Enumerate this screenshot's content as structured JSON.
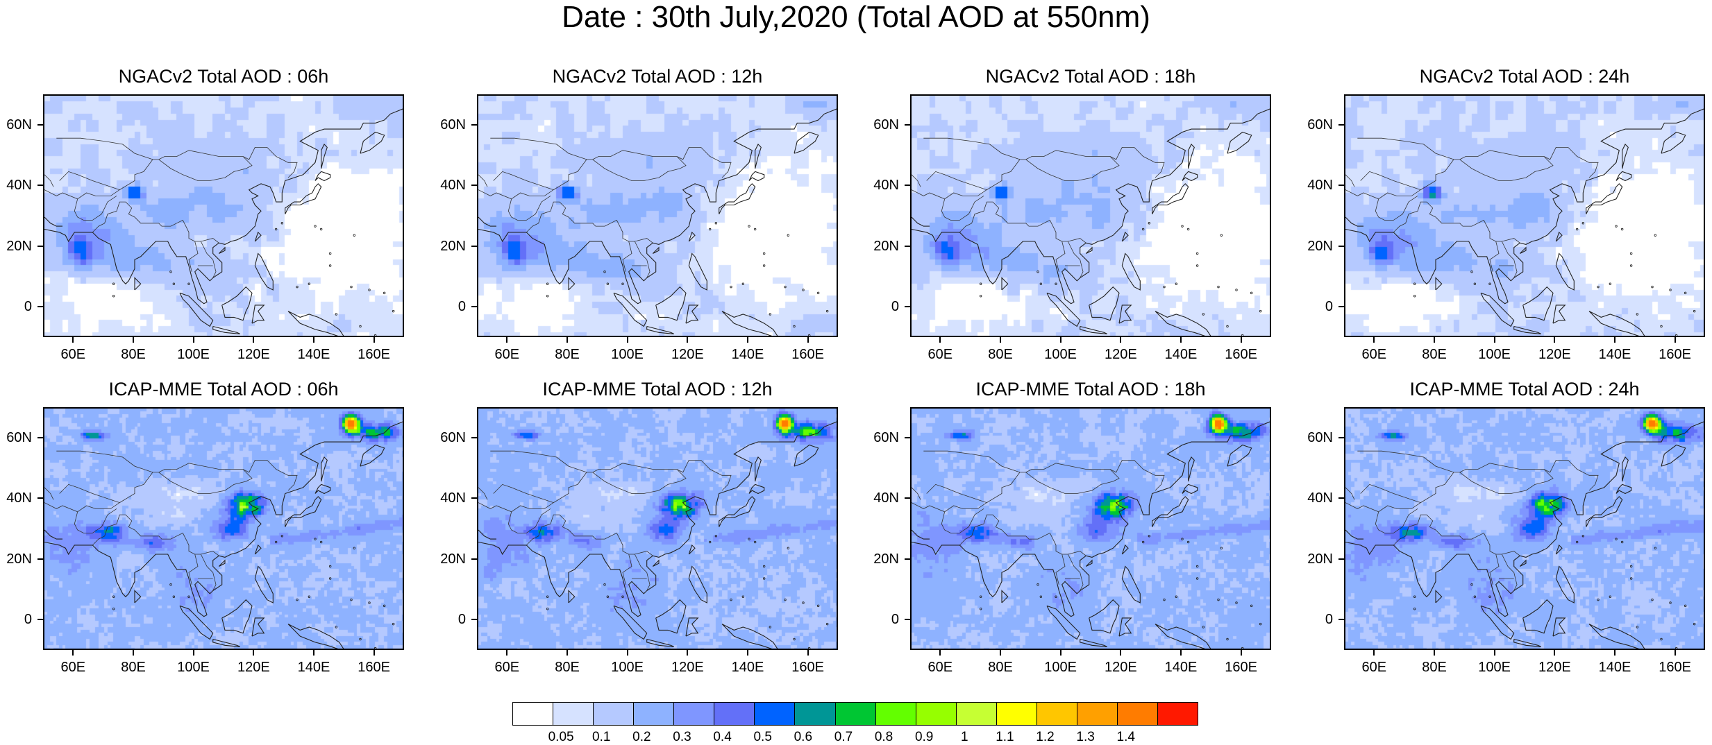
{
  "title": "Date : 30th July,2020 (Total AOD at 550nm)",
  "lat_range": [
    -10,
    70
  ],
  "lon_range": [
    50,
    170
  ],
  "y_ticks": [
    {
      "value": 60,
      "label": "60N"
    },
    {
      "value": 40,
      "label": "40N"
    },
    {
      "value": 20,
      "label": "20N"
    },
    {
      "value": 0,
      "label": "0"
    }
  ],
  "x_ticks": [
    {
      "value": 60,
      "label": "60E"
    },
    {
      "value": 80,
      "label": "80E"
    },
    {
      "value": 100,
      "label": "100E"
    },
    {
      "value": 120,
      "label": "120E"
    },
    {
      "value": 140,
      "label": "140E"
    },
    {
      "value": 160,
      "label": "160E"
    }
  ],
  "panels": [
    {
      "title": "NGACv2 Total AOD : 06h",
      "model": "NGACv2",
      "hour": 6
    },
    {
      "title": "NGACv2 Total AOD : 12h",
      "model": "NGACv2",
      "hour": 12
    },
    {
      "title": "NGACv2 Total AOD : 18h",
      "model": "NGACv2",
      "hour": 18
    },
    {
      "title": "NGACv2 Total AOD : 24h",
      "model": "NGACv2",
      "hour": 24
    },
    {
      "title": "ICAP-MME Total AOD : 06h",
      "model": "ICAP-MME",
      "hour": 6
    },
    {
      "title": "ICAP-MME Total AOD : 12h",
      "model": "ICAP-MME",
      "hour": 12
    },
    {
      "title": "ICAP-MME Total AOD : 18h",
      "model": "ICAP-MME",
      "hour": 18
    },
    {
      "title": "ICAP-MME Total AOD : 24h",
      "model": "ICAP-MME",
      "hour": 24
    }
  ],
  "colorbar": {
    "labels": [
      "0.05",
      "0.1",
      "0.2",
      "0.3",
      "0.4",
      "0.5",
      "0.6",
      "0.7",
      "0.8",
      "0.9",
      "1",
      "1.1",
      "1.2",
      "1.3",
      "1.4"
    ],
    "colors": [
      "#ffffff",
      "#d6e2ff",
      "#b5c9ff",
      "#8eb2ff",
      "#7f96ff",
      "#6370f8",
      "#0063ff",
      "#009696",
      "#00c633",
      "#63ff00",
      "#96ff00",
      "#c6ff33",
      "#ffff00",
      "#ffc600",
      "#ffa000",
      "#ff7c00",
      "#ff1900"
    ]
  }
}
